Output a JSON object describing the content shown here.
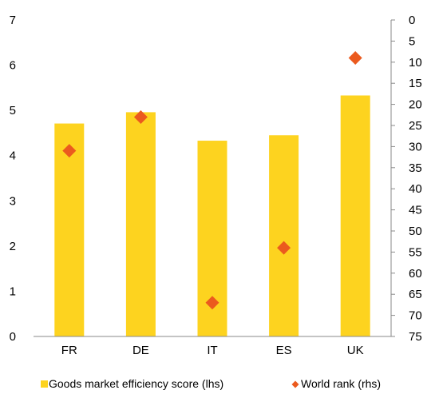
{
  "chart_data": {
    "type": "bar",
    "categories": [
      "FR",
      "DE",
      "IT",
      "ES",
      "UK"
    ],
    "series": [
      {
        "name": "Goods market efficiency score (lhs)",
        "kind": "bar",
        "axis": "left",
        "color": "#FDD31F",
        "values": [
          4.71,
          4.96,
          4.33,
          4.45,
          5.33
        ]
      },
      {
        "name": "World rank (rhs)",
        "kind": "scatter",
        "marker": "diamond",
        "axis": "right",
        "color": "#EB5A1E",
        "values": [
          31,
          23,
          67,
          54,
          9
        ]
      }
    ],
    "left_axis": {
      "ylim": [
        0,
        7
      ],
      "ticks": [
        "0",
        "1",
        "2",
        "3",
        "4",
        "5",
        "6",
        "7"
      ]
    },
    "right_axis": {
      "ylim": [
        0,
        75
      ],
      "inverted": true,
      "ticks": [
        "0",
        "5",
        "10",
        "15",
        "20",
        "25",
        "30",
        "35",
        "40",
        "45",
        "50",
        "55",
        "60",
        "65",
        "70",
        "75"
      ]
    },
    "grid": false,
    "legend_position": "bottom"
  }
}
